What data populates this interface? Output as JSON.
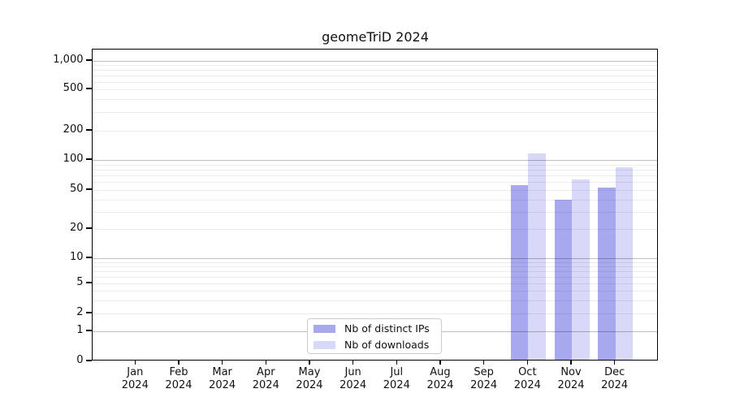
{
  "chart_data": {
    "type": "bar",
    "title": "geomeTriD 2024",
    "categories": [
      "Jan",
      "Feb",
      "Mar",
      "Apr",
      "May",
      "Jun",
      "Jul",
      "Aug",
      "Sep",
      "Oct",
      "Nov",
      "Dec"
    ],
    "category_year": "2024",
    "series": [
      {
        "name": "Nb of distinct IPs",
        "color": "#a8a8ee",
        "values": [
          0,
          0,
          0,
          0,
          0,
          0,
          0,
          0,
          0,
          54,
          38,
          51
        ]
      },
      {
        "name": "Nb of downloads",
        "color": "#d8d8f8",
        "values": [
          0,
          0,
          0,
          0,
          0,
          0,
          0,
          0,
          0,
          112,
          61,
          81
        ]
      }
    ],
    "y_ticks": [
      0,
      1,
      2,
      5,
      10,
      20,
      50,
      100,
      200,
      500,
      1000
    ],
    "y_scale": "log above 1, zero clamped to baseline",
    "ylim": [
      0,
      1300
    ],
    "grid": "horizontal major (1,10,100,1000) and minor (2-9 multiples)",
    "legend_position": "inside plot, bottom center-left",
    "xlabel": "",
    "ylabel": ""
  }
}
